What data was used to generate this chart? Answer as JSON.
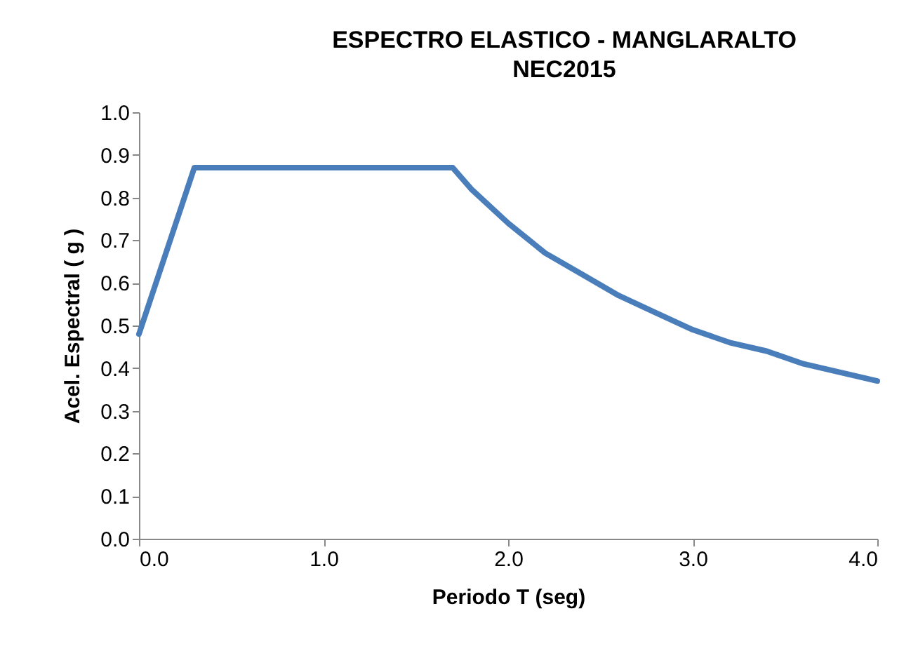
{
  "chart_data": {
    "type": "line",
    "title": "ESPECTRO ELASTICO - MANGLARALTO",
    "subtitle": "NEC2015",
    "xlabel": "Periodo  T (seg)",
    "ylabel": "Acel. Espectral     ( g )",
    "x": [
      0,
      0.3,
      1.7,
      1.8,
      2.0,
      2.2,
      2.4,
      2.6,
      2.8,
      3.0,
      3.2,
      3.4,
      3.6,
      3.8,
      4.0
    ],
    "series": [
      {
        "color": "#4a7ebb",
        "values": [
          0.48,
          0.87,
          0.87,
          0.82,
          0.74,
          0.67,
          0.62,
          0.57,
          0.53,
          0.49,
          0.46,
          0.44,
          0.41,
          0.39,
          0.37
        ]
      }
    ],
    "xlim": [
      0,
      4
    ],
    "ylim": [
      0,
      1
    ],
    "xticks": [
      {
        "value": 0,
        "label": "0.0"
      },
      {
        "value": 1,
        "label": "1.0"
      },
      {
        "value": 2,
        "label": "2.0"
      },
      {
        "value": 3,
        "label": "3.0"
      },
      {
        "value": 4,
        "label": "4.0"
      }
    ],
    "yticks": [
      {
        "value": 0,
        "label": "0.0"
      },
      {
        "value": 0.1,
        "label": "0.1"
      },
      {
        "value": 0.2,
        "label": "0.2"
      },
      {
        "value": 0.3,
        "label": "0.3"
      },
      {
        "value": 0.4,
        "label": "0.4"
      },
      {
        "value": 0.5,
        "label": "0.5"
      },
      {
        "value": 0.6,
        "label": "0.6"
      },
      {
        "value": 0.7,
        "label": "0.7"
      },
      {
        "value": 0.8,
        "label": "0.8"
      },
      {
        "value": 0.9,
        "label": "0.9"
      },
      {
        "value": 1,
        "label": "1.0"
      }
    ],
    "grid": false,
    "line_style": "solid"
  }
}
